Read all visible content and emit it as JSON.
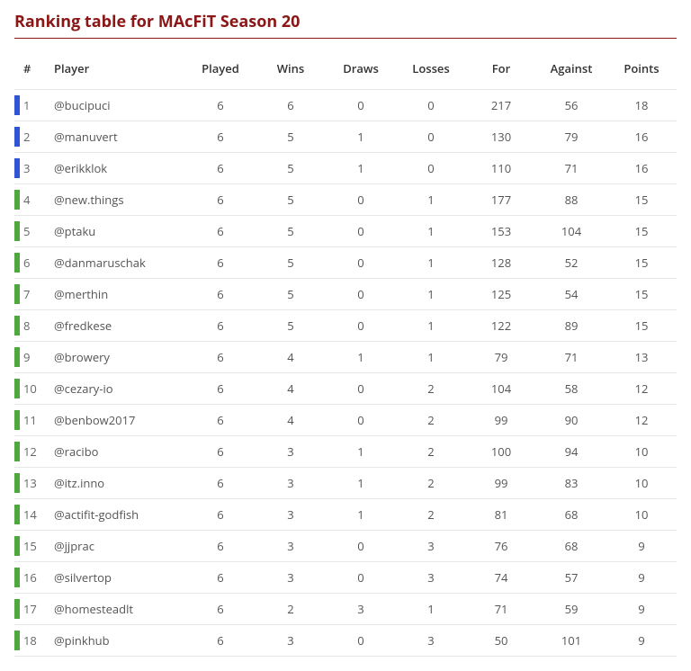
{
  "title": "Ranking table for MAcFiT Season 20",
  "title_color": "#8a1616",
  "columns": [
    "#",
    "Player",
    "Played",
    "Wins",
    "Draws",
    "Losses",
    "For",
    "Against",
    "Points"
  ],
  "marker_colors": {
    "blue": "#2f55d4",
    "green": "#4fa83d"
  },
  "rows": [
    {
      "rank": 1,
      "player": "@bucipuci",
      "played": 6,
      "wins": 6,
      "draws": 0,
      "losses": 0,
      "for": 217,
      "against": 56,
      "points": 18,
      "tier": "blue"
    },
    {
      "rank": 2,
      "player": "@manuvert",
      "played": 6,
      "wins": 5,
      "draws": 1,
      "losses": 0,
      "for": 130,
      "against": 79,
      "points": 16,
      "tier": "blue"
    },
    {
      "rank": 3,
      "player": "@erikklok",
      "played": 6,
      "wins": 5,
      "draws": 1,
      "losses": 0,
      "for": 110,
      "against": 71,
      "points": 16,
      "tier": "blue"
    },
    {
      "rank": 4,
      "player": "@new.things",
      "played": 6,
      "wins": 5,
      "draws": 0,
      "losses": 1,
      "for": 177,
      "against": 88,
      "points": 15,
      "tier": "green"
    },
    {
      "rank": 5,
      "player": "@ptaku",
      "played": 6,
      "wins": 5,
      "draws": 0,
      "losses": 1,
      "for": 153,
      "against": 104,
      "points": 15,
      "tier": "green"
    },
    {
      "rank": 6,
      "player": "@danmaruschak",
      "played": 6,
      "wins": 5,
      "draws": 0,
      "losses": 1,
      "for": 128,
      "against": 52,
      "points": 15,
      "tier": "green"
    },
    {
      "rank": 7,
      "player": "@merthin",
      "played": 6,
      "wins": 5,
      "draws": 0,
      "losses": 1,
      "for": 125,
      "against": 54,
      "points": 15,
      "tier": "green"
    },
    {
      "rank": 8,
      "player": "@fredkese",
      "played": 6,
      "wins": 5,
      "draws": 0,
      "losses": 1,
      "for": 122,
      "against": 89,
      "points": 15,
      "tier": "green"
    },
    {
      "rank": 9,
      "player": "@browery",
      "played": 6,
      "wins": 4,
      "draws": 1,
      "losses": 1,
      "for": 79,
      "against": 71,
      "points": 13,
      "tier": "green"
    },
    {
      "rank": 10,
      "player": "@cezary-io",
      "played": 6,
      "wins": 4,
      "draws": 0,
      "losses": 2,
      "for": 104,
      "against": 58,
      "points": 12,
      "tier": "green"
    },
    {
      "rank": 11,
      "player": "@benbow2017",
      "played": 6,
      "wins": 4,
      "draws": 0,
      "losses": 2,
      "for": 99,
      "against": 90,
      "points": 12,
      "tier": "green"
    },
    {
      "rank": 12,
      "player": "@racibo",
      "played": 6,
      "wins": 3,
      "draws": 1,
      "losses": 2,
      "for": 100,
      "against": 94,
      "points": 10,
      "tier": "green"
    },
    {
      "rank": 13,
      "player": "@itz.inno",
      "played": 6,
      "wins": 3,
      "draws": 1,
      "losses": 2,
      "for": 99,
      "against": 83,
      "points": 10,
      "tier": "green"
    },
    {
      "rank": 14,
      "player": "@actifit-godfish",
      "played": 6,
      "wins": 3,
      "draws": 1,
      "losses": 2,
      "for": 81,
      "against": 68,
      "points": 10,
      "tier": "green"
    },
    {
      "rank": 15,
      "player": "@jjprac",
      "played": 6,
      "wins": 3,
      "draws": 0,
      "losses": 3,
      "for": 76,
      "against": 68,
      "points": 9,
      "tier": "green"
    },
    {
      "rank": 16,
      "player": "@silvertop",
      "played": 6,
      "wins": 3,
      "draws": 0,
      "losses": 3,
      "for": 74,
      "against": 57,
      "points": 9,
      "tier": "green"
    },
    {
      "rank": 17,
      "player": "@homesteadlt",
      "played": 6,
      "wins": 2,
      "draws": 3,
      "losses": 1,
      "for": 71,
      "against": 59,
      "points": 9,
      "tier": "green"
    },
    {
      "rank": 18,
      "player": "@pinkhub",
      "played": 6,
      "wins": 3,
      "draws": 0,
      "losses": 3,
      "for": 50,
      "against": 101,
      "points": 9,
      "tier": "green"
    }
  ]
}
